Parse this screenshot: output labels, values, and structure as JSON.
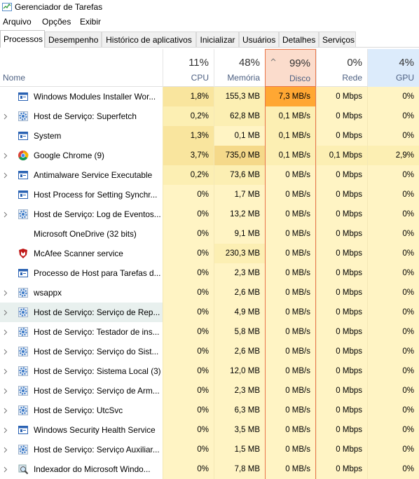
{
  "window": {
    "title": "Gerenciador de Tarefas"
  },
  "menu": [
    "Arquivo",
    "Opções",
    "Exibir"
  ],
  "tabs": [
    "Processos",
    "Desempenho",
    "Histórico de aplicativos",
    "Inicializar",
    "Usuários",
    "Detalhes",
    "Serviços"
  ],
  "columns": [
    {
      "name": "Nome"
    },
    {
      "usage": "11%",
      "name": "CPU"
    },
    {
      "usage": "48%",
      "name": "Memória"
    },
    {
      "usage": "99%",
      "name": "Disco"
    },
    {
      "usage": "0%",
      "name": "Rede"
    },
    {
      "usage": "4%",
      "name": "GPU"
    }
  ],
  "rows": [
    {
      "name": "Windows Modules Installer Wor...",
      "cells": [
        "1,8%",
        "155,3 MB",
        "7,3 MB/s",
        "0 Mbps",
        "0%"
      ],
      "colors": [
        "#f9e59e",
        "#fcefb3",
        "#ffa733",
        "#fff4c4",
        "#fff4c4"
      ]
    },
    {
      "name": "Host de Serviço: Superfetch",
      "cells": [
        "0,2%",
        "62,8 MB",
        "0,1 MB/s",
        "0 Mbps",
        "0%"
      ],
      "colors": [
        "#fcefb3",
        "#fcefb3",
        "#fcefb3",
        "#fff4c4",
        "#fff4c4"
      ]
    },
    {
      "name": "System",
      "cells": [
        "1,3%",
        "0,1 MB",
        "0,1 MB/s",
        "0 Mbps",
        "0%"
      ],
      "colors": [
        "#f9e59e",
        "#fff4c4",
        "#fcefb3",
        "#fff4c4",
        "#fff4c4"
      ]
    },
    {
      "name": "Google Chrome (9)",
      "cells": [
        "3,7%",
        "735,0 MB",
        "0,1 MB/s",
        "0,1 Mbps",
        "2,9%"
      ],
      "colors": [
        "#f9e59e",
        "#f5d98a",
        "#fcefb3",
        "#fcefb3",
        "#fcefb3"
      ]
    },
    {
      "name": "Antimalware Service Executable",
      "cells": [
        "0,2%",
        "73,6 MB",
        "0 MB/s",
        "0 Mbps",
        "0%"
      ],
      "colors": [
        "#fcefb3",
        "#fcefb3",
        "#fff4c4",
        "#fff4c4",
        "#fff4c4"
      ]
    },
    {
      "name": "Host Process for Setting Synchr...",
      "cells": [
        "0%",
        "1,7 MB",
        "0 MB/s",
        "0 Mbps",
        "0%"
      ],
      "colors": [
        "#fff4c4",
        "#fff4c4",
        "#fff4c4",
        "#fff4c4",
        "#fff4c4"
      ]
    },
    {
      "name": "Host de Serviço: Log de Eventos...",
      "cells": [
        "0%",
        "13,2 MB",
        "0 MB/s",
        "0 Mbps",
        "0%"
      ],
      "colors": [
        "#fff4c4",
        "#fff4c4",
        "#fff4c4",
        "#fff4c4",
        "#fff4c4"
      ]
    },
    {
      "name": "Microsoft OneDrive (32 bits)",
      "cells": [
        "0%",
        "9,1 MB",
        "0 MB/s",
        "0 Mbps",
        "0%"
      ],
      "colors": [
        "#fff4c4",
        "#fff4c4",
        "#fff4c4",
        "#fff4c4",
        "#fff4c4"
      ]
    },
    {
      "name": "McAfee Scanner service",
      "cells": [
        "0%",
        "230,3 MB",
        "0 MB/s",
        "0 Mbps",
        "0%"
      ],
      "colors": [
        "#fff4c4",
        "#fcefb3",
        "#fff4c4",
        "#fff4c4",
        "#fff4c4"
      ]
    },
    {
      "name": "Processo de Host para Tarefas d...",
      "cells": [
        "0%",
        "2,3 MB",
        "0 MB/s",
        "0 Mbps",
        "0%"
      ],
      "colors": [
        "#fff4c4",
        "#fff4c4",
        "#fff4c4",
        "#fff4c4",
        "#fff4c4"
      ]
    },
    {
      "name": "wsappx",
      "cells": [
        "0%",
        "2,6 MB",
        "0 MB/s",
        "0 Mbps",
        "0%"
      ],
      "colors": [
        "#fff4c4",
        "#fff4c4",
        "#fff4c4",
        "#fff4c4",
        "#fff4c4"
      ]
    },
    {
      "name": "Host de Serviço: Serviço de Rep...",
      "cells": [
        "0%",
        "4,9 MB",
        "0 MB/s",
        "0 Mbps",
        "0%"
      ],
      "colors": [
        "#fff4c4",
        "#fff4c4",
        "#fff4c4",
        "#fff4c4",
        "#fff4c4"
      ]
    },
    {
      "name": "Host de Serviço: Testador de ins...",
      "cells": [
        "0%",
        "5,8 MB",
        "0 MB/s",
        "0 Mbps",
        "0%"
      ],
      "colors": [
        "#fff4c4",
        "#fff4c4",
        "#fff4c4",
        "#fff4c4",
        "#fff4c4"
      ]
    },
    {
      "name": "Host de Serviço: Serviço do Sist...",
      "cells": [
        "0%",
        "2,6 MB",
        "0 MB/s",
        "0 Mbps",
        "0%"
      ],
      "colors": [
        "#fff4c4",
        "#fff4c4",
        "#fff4c4",
        "#fff4c4",
        "#fff4c4"
      ]
    },
    {
      "name": "Host de Serviço: Sistema Local (3)",
      "cells": [
        "0%",
        "12,0 MB",
        "0 MB/s",
        "0 Mbps",
        "0%"
      ],
      "colors": [
        "#fff4c4",
        "#fff4c4",
        "#fff4c4",
        "#fff4c4",
        "#fff4c4"
      ]
    },
    {
      "name": "Host de Serviço: Serviço de Arm...",
      "cells": [
        "0%",
        "2,3 MB",
        "0 MB/s",
        "0 Mbps",
        "0%"
      ],
      "colors": [
        "#fff4c4",
        "#fff4c4",
        "#fff4c4",
        "#fff4c4",
        "#fff4c4"
      ]
    },
    {
      "name": "Host de Serviço: UtcSvc",
      "cells": [
        "0%",
        "6,3 MB",
        "0 MB/s",
        "0 Mbps",
        "0%"
      ],
      "colors": [
        "#fff4c4",
        "#fff4c4",
        "#fff4c4",
        "#fff4c4",
        "#fff4c4"
      ]
    },
    {
      "name": "Windows Security Health Service",
      "cells": [
        "0%",
        "3,5 MB",
        "0 MB/s",
        "0 Mbps",
        "0%"
      ],
      "colors": [
        "#fff4c4",
        "#fff4c4",
        "#fff4c4",
        "#fff4c4",
        "#fff4c4"
      ]
    },
    {
      "name": "Host de Serviço: Serviço Auxiliar...",
      "cells": [
        "0%",
        "1,5 MB",
        "0 MB/s",
        "0 Mbps",
        "0%"
      ],
      "colors": [
        "#fff4c4",
        "#fff4c4",
        "#fff4c4",
        "#fff4c4",
        "#fff4c4"
      ]
    },
    {
      "name": "Indexador do Microsoft Windo...",
      "cells": [
        "0%",
        "7,8 MB",
        "0 MB/s",
        "0 Mbps",
        "0%"
      ],
      "colors": [
        "#fff4c4",
        "#fff4c4",
        "#fff4c4",
        "#fff4c4",
        "#fff4c4"
      ]
    }
  ]
}
